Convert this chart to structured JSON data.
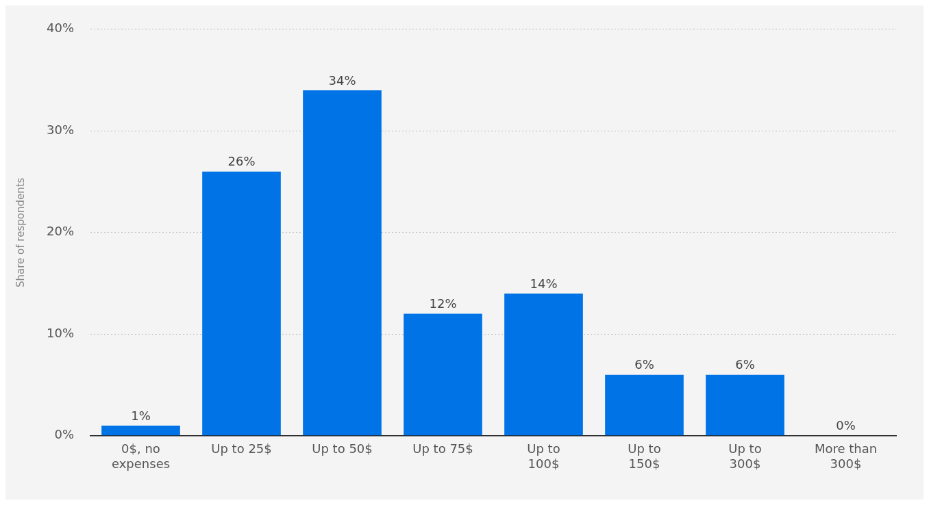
{
  "chart_data": {
    "type": "bar",
    "ylabel": "Share of respondents",
    "categories": [
      "0$, no expenses",
      "Up to 25$",
      "Up to 50$",
      "Up to 75$",
      "Up to 100$",
      "Up to 150$",
      "Up to 300$",
      "More than 300$"
    ],
    "values": [
      1,
      26,
      34,
      12,
      14,
      6,
      6,
      0
    ],
    "value_labels": [
      "1%",
      "26%",
      "34%",
      "12%",
      "14%",
      "6%",
      "6%",
      "0%"
    ],
    "color": "#0073e6",
    "ylim": [
      0,
      40
    ],
    "yticks": [
      {
        "value": 0,
        "label": "0%"
      },
      {
        "value": 10,
        "label": "10%"
      },
      {
        "value": 20,
        "label": "20%"
      },
      {
        "value": 30,
        "label": "30%"
      },
      {
        "value": 40,
        "label": "40%"
      }
    ],
    "grid": "y"
  }
}
